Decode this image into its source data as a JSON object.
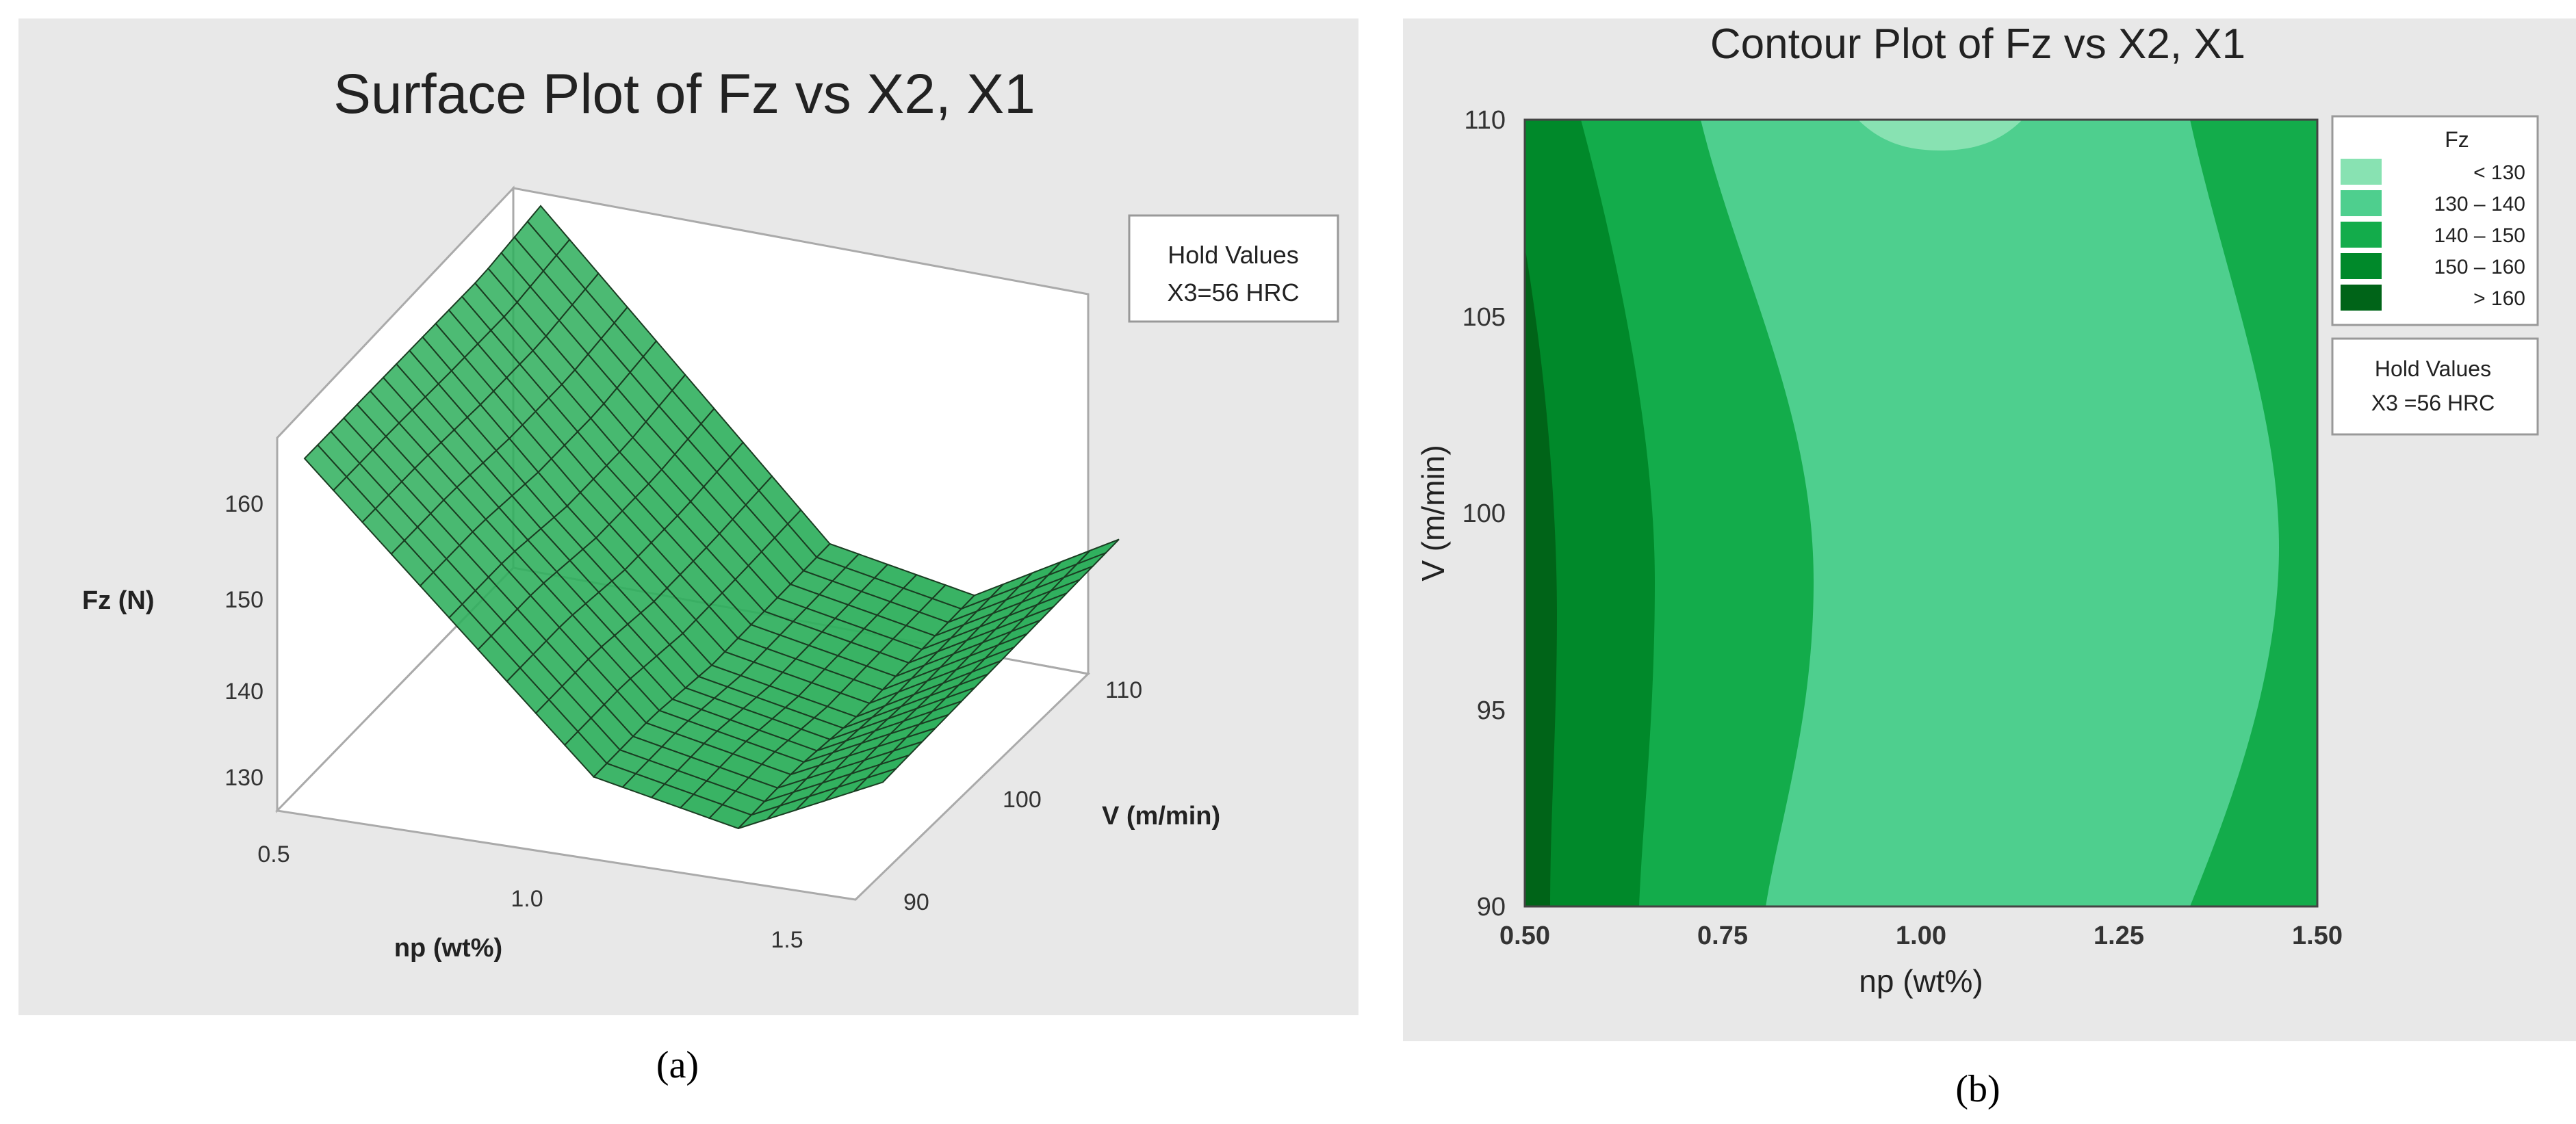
{
  "chart_data": [
    {
      "type": "surface",
      "title": "Surface Plot of Fz vs X2, X1",
      "xlabel": "np (wt%)",
      "ylabel": "V (m/min)",
      "zlabel": "Fz (N)",
      "x_ticks": [
        "0.5",
        "1.0",
        "1.5"
      ],
      "y_ticks": [
        "90",
        "100",
        "110"
      ],
      "z_ticks": [
        "130",
        "140",
        "150",
        "160"
      ],
      "xlim": [
        0.5,
        1.5
      ],
      "ylim": [
        90,
        110
      ],
      "zlim": [
        128,
        165
      ],
      "hold_values": {
        "title": "Hold Values",
        "value": "X3=56 HRC"
      },
      "surface_grid": {
        "x": [
          0.5,
          0.75,
          1.0,
          1.25,
          1.5
        ],
        "y": [
          90,
          95,
          100,
          105,
          110
        ],
        "z": [
          [
            164,
            150,
            136,
            133,
            140
          ],
          [
            164,
            150,
            136,
            133,
            140
          ],
          [
            164,
            149,
            135,
            132,
            140
          ],
          [
            164,
            149,
            135,
            132,
            140
          ],
          [
            165,
            150,
            135,
            132,
            140
          ]
        ]
      },
      "color": "#2eaf5c",
      "caption": "(a)"
    },
    {
      "type": "contour",
      "title": "Contour Plot of Fz vs X2, X1",
      "xlabel": "np (wt%)",
      "ylabel": "V (m/min)",
      "xlim": [
        0.5,
        1.5
      ],
      "ylim": [
        90,
        110
      ],
      "x_ticks": [
        "0.50",
        "0.75",
        "1.00",
        "1.25",
        "1.50"
      ],
      "y_ticks": [
        "90",
        "95",
        "100",
        "105",
        "110"
      ],
      "legend": {
        "title": "Fz",
        "levels": [
          {
            "label": "< 130",
            "color": "#88e2b2"
          },
          {
            "label": "130 – 140",
            "color": "#4ecf8e"
          },
          {
            "label": "140 – 150",
            "color": "#13ac4b"
          },
          {
            "label": "150 – 160",
            "color": "#00892a"
          },
          {
            "label": "> 160",
            "color": "#006418"
          }
        ]
      },
      "hold_values": {
        "title": "Hold Values",
        "value": "X3 =56 HRC"
      },
      "caption": "(b)"
    }
  ]
}
